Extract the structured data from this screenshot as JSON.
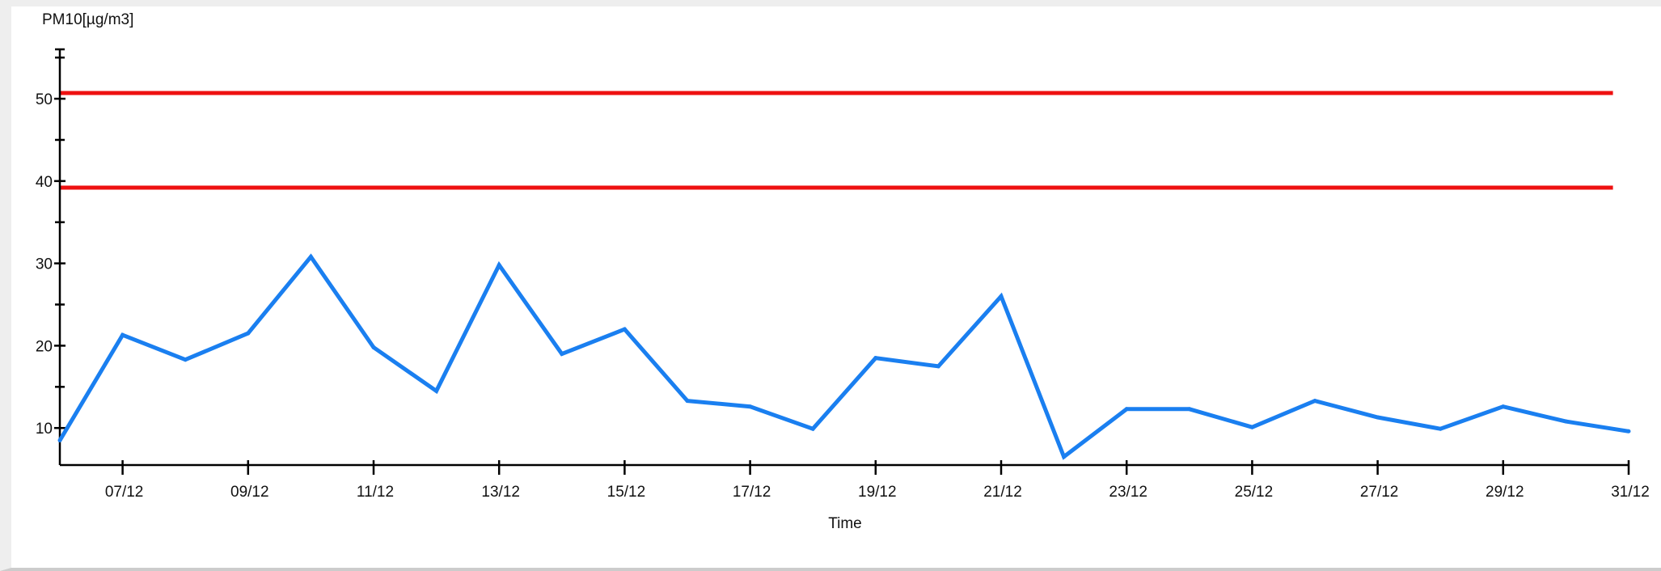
{
  "chart_data": {
    "type": "line",
    "ylabel": "PM10[µg/m3]",
    "xlabel": "Time",
    "ylim": [
      5.5,
      56
    ],
    "y_ticks": [
      10,
      20,
      30,
      40,
      50
    ],
    "y_ticks_labels": [
      "10",
      "20",
      "30",
      "40",
      "50"
    ],
    "x_start_day": 6,
    "x_end_day": 31,
    "x_tick_days": [
      7,
      9,
      11,
      13,
      15,
      17,
      19,
      21,
      23,
      25,
      27,
      29,
      31
    ],
    "x_tick_labels": [
      "07/12",
      "09/12",
      "11/12",
      "13/12",
      "15/12",
      "17/12",
      "19/12",
      "21/12",
      "23/12",
      "25/12",
      "27/12",
      "29/12",
      "31/12"
    ],
    "grid": false,
    "series": [
      {
        "color": "#1a7ff0",
        "x": [
          6,
          7,
          8,
          9,
          10,
          11,
          12,
          13,
          14,
          15,
          16,
          17,
          18,
          19,
          20,
          21,
          22,
          23,
          24,
          25,
          26,
          27,
          28,
          29,
          30,
          31
        ],
        "values": [
          8.5,
          21.3,
          18.3,
          21.5,
          30.8,
          19.8,
          14.5,
          29.8,
          19,
          22,
          13.3,
          12.6,
          9.9,
          18.5,
          17.5,
          26,
          6.5,
          12.3,
          12.3,
          10.1,
          13.3,
          11.3,
          9.9,
          12.6,
          10.8,
          9.6
        ]
      }
    ],
    "reference_lines": [
      {
        "value": 50.7,
        "color": "#ee1111",
        "x_end_day": 30.75
      },
      {
        "value": 39.2,
        "color": "#ee1111",
        "x_end_day": 30.75
      }
    ]
  }
}
